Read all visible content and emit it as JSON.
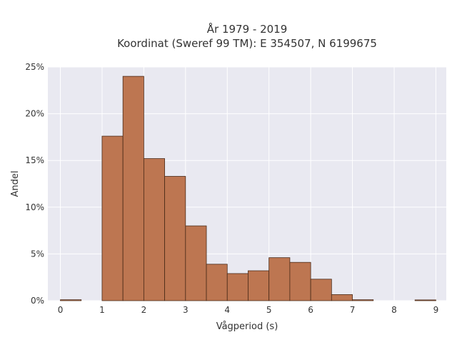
{
  "chart_data": {
    "type": "bar",
    "title": "År 1979 - 2019",
    "subtitle": "Koordinat (Sweref 99 TM): E 354507, N 6199675",
    "xlabel": "Vågperiod (s)",
    "ylabel": "Andel",
    "bin_width": 0.5,
    "bins": [
      {
        "start": 0.0,
        "value": 0.001
      },
      {
        "start": 0.5,
        "value": 0.0
      },
      {
        "start": 1.0,
        "value": 0.176
      },
      {
        "start": 1.5,
        "value": 0.24
      },
      {
        "start": 2.0,
        "value": 0.152
      },
      {
        "start": 2.5,
        "value": 0.133
      },
      {
        "start": 3.0,
        "value": 0.08
      },
      {
        "start": 3.5,
        "value": 0.039
      },
      {
        "start": 4.0,
        "value": 0.029
      },
      {
        "start": 4.5,
        "value": 0.032
      },
      {
        "start": 5.0,
        "value": 0.046
      },
      {
        "start": 5.5,
        "value": 0.041
      },
      {
        "start": 6.0,
        "value": 0.023
      },
      {
        "start": 6.5,
        "value": 0.0065
      },
      {
        "start": 7.0,
        "value": 0.001
      },
      {
        "start": 7.5,
        "value": 0.0
      },
      {
        "start": 8.0,
        "value": 0.0
      },
      {
        "start": 8.5,
        "value": 0.0008
      }
    ],
    "xlim": [
      -0.3,
      9.25
    ],
    "ylim": [
      0,
      0.25
    ],
    "x_ticks": [
      0,
      1,
      2,
      3,
      4,
      5,
      6,
      7,
      8,
      9
    ],
    "x_tick_labels": [
      "0",
      "1",
      "2",
      "3",
      "4",
      "5",
      "6",
      "7",
      "8",
      "9"
    ],
    "y_ticks": [
      0,
      0.05,
      0.1,
      0.15,
      0.2,
      0.25
    ],
    "y_tick_labels": [
      "0%",
      "5%",
      "10%",
      "15%",
      "20%",
      "25%"
    ],
    "grid": true,
    "colors": {
      "bar_fill": "#bd7651",
      "bar_edge": "#4a2a18",
      "plot_bg": "#e9e9f1",
      "grid": "#ffffff",
      "text": "#333333"
    }
  }
}
